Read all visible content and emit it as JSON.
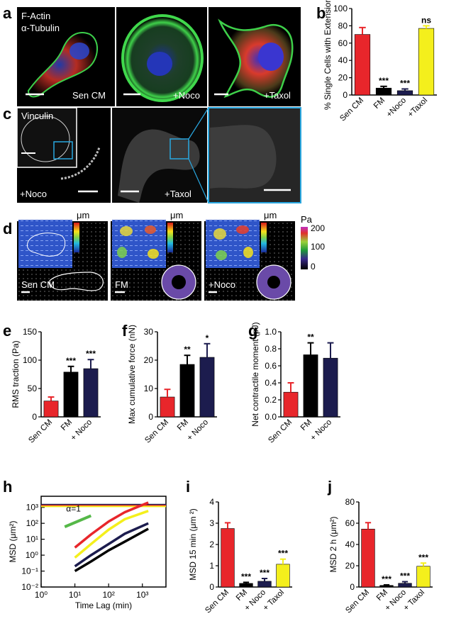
{
  "panel_labels": [
    "a",
    "b",
    "c",
    "d",
    "e",
    "f",
    "g",
    "h",
    "i",
    "j"
  ],
  "colors": {
    "sen_cm": "#e8262b",
    "fm": "#000000",
    "noco": "#1c1c4e",
    "taxol": "#f4ef1c",
    "alpha_line": "#55b848"
  },
  "panel_a": {
    "legend": [
      "F-Actin",
      "α-Tubulin"
    ],
    "legend_colors": [
      "#38c248",
      "#f02828"
    ],
    "labels": [
      "Sen CM",
      "+Noco",
      "+Taxol"
    ]
  },
  "panel_c": {
    "stain": "Vinculin",
    "labels": [
      "+Noco",
      "+Taxol"
    ]
  },
  "panel_d": {
    "labels": [
      "Sen CM",
      "FM",
      "+Noco"
    ],
    "unit_um": "μm",
    "um_ticks": [
      "1.0",
      "0.5",
      "0"
    ],
    "unit_pa": "Pa",
    "pa_ticks": [
      "200",
      "100",
      "0"
    ]
  },
  "chart_data": [
    {
      "id": "b",
      "type": "bar",
      "categories": [
        "Sen CM",
        "FM",
        "+Noco",
        "+Taxol"
      ],
      "values": [
        70,
        8,
        5,
        77
      ],
      "errors": [
        8,
        2,
        2,
        3
      ],
      "ylabel": "% Single Cells with Extensions",
      "ylim": [
        0,
        100
      ],
      "yticks": [
        "0",
        "20",
        "40",
        "60",
        "80",
        "100"
      ],
      "tick_values": [
        0,
        20,
        40,
        60,
        80,
        100
      ],
      "significance": [
        "",
        "***",
        "***",
        "ns"
      ]
    },
    {
      "id": "e",
      "type": "bar",
      "categories": [
        "Sen CM",
        "FM",
        "+ Noco"
      ],
      "values": [
        28,
        79,
        85
      ],
      "errors": [
        7,
        10,
        16
      ],
      "ylabel": "RMS traction (Pa)",
      "ylim": [
        0,
        150
      ],
      "yticks": [
        "0",
        "50",
        "100",
        "150"
      ],
      "tick_values": [
        0,
        50,
        100,
        150
      ],
      "significance": [
        "",
        "***",
        "***"
      ]
    },
    {
      "id": "f",
      "type": "bar",
      "categories": [
        "Sen CM",
        "FM",
        "+ Noco"
      ],
      "values": [
        7,
        18.5,
        21
      ],
      "errors": [
        2.7,
        3.2,
        4.8
      ],
      "ylabel": "Max cumulative force (nN)",
      "ylim": [
        0,
        30
      ],
      "yticks": [
        "0",
        "10",
        "20",
        "30"
      ],
      "tick_values": [
        0,
        10,
        20,
        30
      ],
      "significance": [
        "",
        "**",
        "*"
      ]
    },
    {
      "id": "g",
      "type": "bar",
      "categories": [
        "Sen CM",
        "FM",
        "+ Noco"
      ],
      "values": [
        0.29,
        0.73,
        0.69
      ],
      "errors": [
        0.11,
        0.14,
        0.18
      ],
      "ylabel": "Net contractile moment (pJ)",
      "ylim": [
        0,
        1
      ],
      "yticks": [
        "0.0",
        "0.2",
        "0.4",
        "0.6",
        "0.8",
        "1.0"
      ],
      "tick_values": [
        0,
        0.2,
        0.4,
        0.6,
        0.8,
        1.0
      ],
      "significance": [
        "",
        "**",
        ""
      ]
    },
    {
      "id": "h",
      "type": "line",
      "xscale": "log",
      "yscale": "log",
      "xlabel": "Time Lag (min)",
      "ylabel": "MSD (μm²)",
      "xlim": [
        1,
        5000
      ],
      "ylim": [
        0.01,
        5000
      ],
      "xticks": [
        "10⁰",
        "10¹",
        "10²",
        "10³"
      ],
      "xtick_values": [
        1,
        10,
        100,
        1000
      ],
      "yticks": [
        "10⁻²",
        "10⁻¹",
        "10⁰",
        "10¹",
        "10²",
        "10³"
      ],
      "ytick_values": [
        0.01,
        0.1,
        1,
        10,
        100,
        1000
      ],
      "annotation": "α=1",
      "alpha_line": {
        "x": [
          5,
          30
        ],
        "y": [
          60,
          300
        ]
      },
      "horizontal": [
        {
          "y": 1500,
          "color": "#1c1c4e"
        },
        {
          "y": 1300,
          "color": "#e8262b"
        },
        {
          "y": 1150,
          "color": "#f4ef1c"
        }
      ],
      "series": [
        {
          "color": "#e8262b",
          "x": [
            10,
            30,
            100,
            300,
            1500
          ],
          "y": [
            3,
            20,
            130,
            500,
            2000
          ]
        },
        {
          "color": "#f4ef1c",
          "x": [
            10,
            30,
            100,
            300,
            1500
          ],
          "y": [
            0.7,
            5,
            40,
            180,
            600
          ]
        },
        {
          "color": "#1c1c4e",
          "x": [
            10,
            30,
            100,
            300,
            1500
          ],
          "y": [
            0.2,
            1,
            5,
            22,
            100
          ]
        },
        {
          "color": "#000000",
          "x": [
            10,
            30,
            100,
            300,
            1500
          ],
          "y": [
            0.1,
            0.4,
            2,
            7,
            45
          ]
        }
      ]
    },
    {
      "id": "i",
      "type": "bar",
      "categories": [
        "Sen CM",
        "FM",
        "+ Noco",
        "+ Taxol"
      ],
      "values": [
        2.75,
        0.17,
        0.27,
        1.07
      ],
      "errors": [
        0.27,
        0.05,
        0.13,
        0.24
      ],
      "ylabel": "MSD 15 min (μm ²)",
      "ylim": [
        0,
        4
      ],
      "yticks": [
        "0",
        "1",
        "2",
        "3",
        "4"
      ],
      "tick_values": [
        0,
        1,
        2,
        3,
        4
      ],
      "significance": [
        "",
        "***",
        "***",
        "***"
      ]
    },
    {
      "id": "j",
      "type": "bar",
      "categories": [
        "Sen CM",
        "FM",
        "+ Noco",
        "+ Taxol"
      ],
      "values": [
        54.5,
        1.5,
        3.5,
        19.5
      ],
      "errors": [
        6,
        0.5,
        1.5,
        3
      ],
      "ylabel": "MSD 2 h (μm²)",
      "ylim": [
        0,
        80
      ],
      "yticks": [
        "0",
        "20",
        "40",
        "60",
        "80"
      ],
      "tick_values": [
        0,
        20,
        40,
        60,
        80
      ],
      "significance": [
        "",
        "***",
        "***",
        "***"
      ]
    }
  ]
}
